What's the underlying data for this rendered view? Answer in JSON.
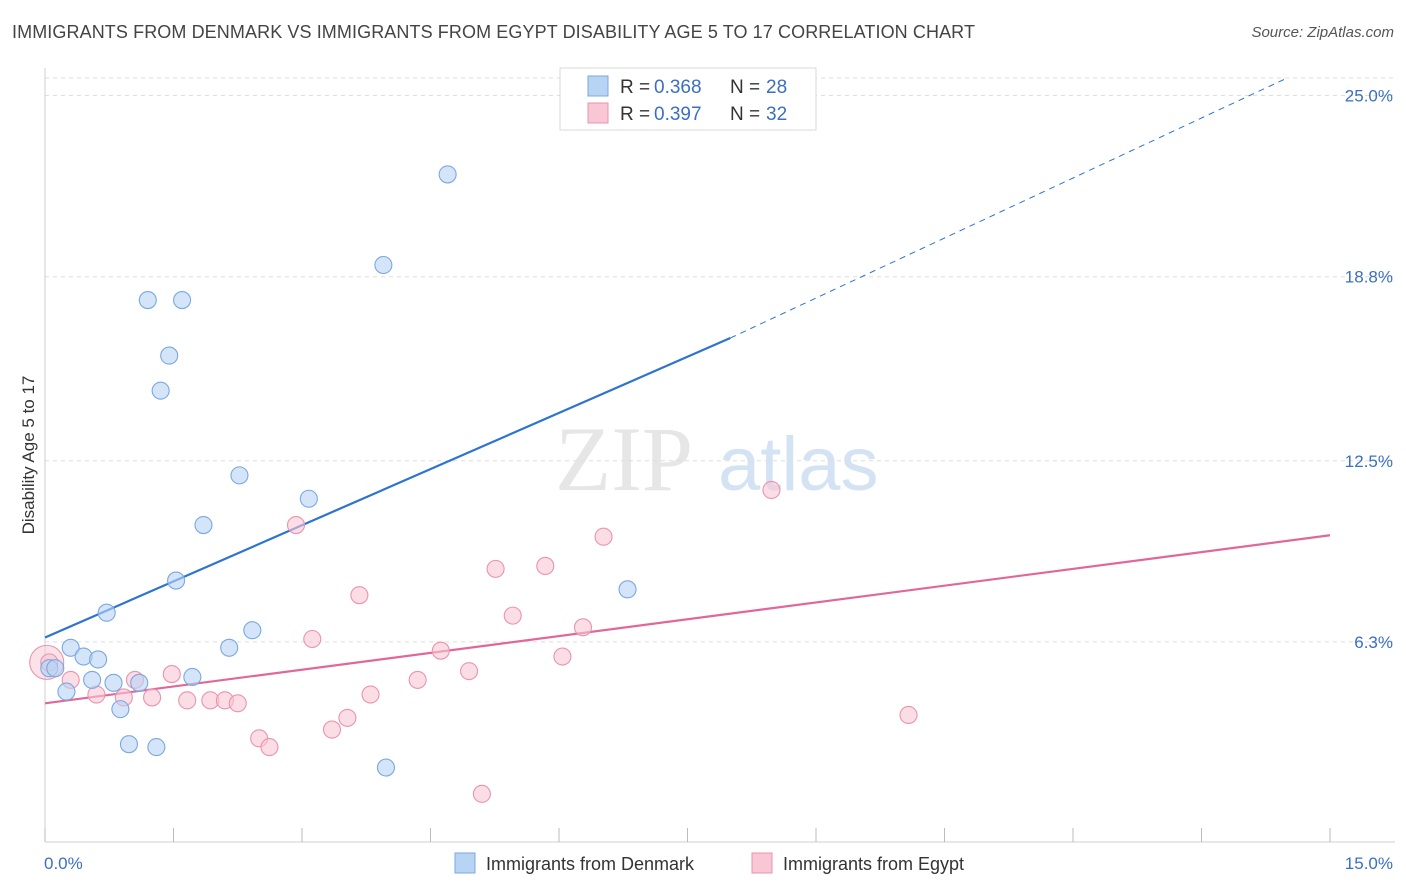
{
  "title": "IMMIGRANTS FROM DENMARK VS IMMIGRANTS FROM EGYPT DISABILITY AGE 5 TO 17 CORRELATION CHART",
  "source": "Source: ZipAtlas.com",
  "watermark": {
    "zip": "ZIP",
    "atlas": "atlas"
  },
  "colors": {
    "denmark_fill": "#b8d4f5",
    "denmark_stroke": "#7aa8e0",
    "denmark_line": "#2c74cf",
    "egypt_fill": "#f8c6d4",
    "egypt_stroke": "#eb93ad",
    "egypt_line": "#e0679a",
    "tick_text": "#3a6fc4",
    "grid": "#dedede"
  },
  "legend": [
    {
      "r_label": "R =",
      "r_value": "0.368",
      "n_label": "N =",
      "n_value": "28"
    },
    {
      "r_label": "R =",
      "r_value": "0.397",
      "n_label": "N =",
      "n_value": "32"
    }
  ],
  "chart_data": {
    "type": "scatter",
    "title": "IMMIGRANTS FROM DENMARK VS IMMIGRANTS FROM EGYPT DISABILITY AGE 5 TO 17 CORRELATION CHART",
    "xlabel": "",
    "ylabel": "Disability Age 5 to 17",
    "xlim": [
      0,
      15
    ],
    "ylim": [
      0,
      25.6
    ],
    "x_tick_labels": [
      "0.0%",
      "15.0%"
    ],
    "y_ticks": [
      6.3,
      12.5,
      18.8,
      25.0
    ],
    "y_tick_labels": [
      "6.3%",
      "12.5%",
      "18.8%",
      "25.0%"
    ],
    "legend_position": "top-center",
    "series": [
      {
        "name": "Immigrants from Denmark",
        "points": [
          [
            0.05,
            5.4
          ],
          [
            0.12,
            5.4
          ],
          [
            0.25,
            4.6
          ],
          [
            0.3,
            6.1
          ],
          [
            0.45,
            5.8
          ],
          [
            0.55,
            5.0
          ],
          [
            0.62,
            5.7
          ],
          [
            0.72,
            7.3
          ],
          [
            0.8,
            4.9
          ],
          [
            0.88,
            4.0
          ],
          [
            0.98,
            2.8
          ],
          [
            1.1,
            4.9
          ],
          [
            1.2,
            18.0
          ],
          [
            1.3,
            2.7
          ],
          [
            1.35,
            14.9
          ],
          [
            1.45,
            16.1
          ],
          [
            1.53,
            8.4
          ],
          [
            1.6,
            18.0
          ],
          [
            1.72,
            5.1
          ],
          [
            1.85,
            10.3
          ],
          [
            2.15,
            6.1
          ],
          [
            2.27,
            12.0
          ],
          [
            2.42,
            6.7
          ],
          [
            3.08,
            11.2
          ],
          [
            3.95,
            19.2
          ],
          [
            3.98,
            2.0
          ],
          [
            4.7,
            22.3
          ],
          [
            6.8,
            8.1
          ]
        ],
        "trend": {
          "x": [
            0,
            8.0
          ],
          "y": [
            6.45,
            16.7
          ],
          "dashed_to": [
            14.5,
            25.6
          ]
        }
      },
      {
        "name": "Immigrants from Egypt",
        "points": [
          [
            0.02,
            5.6
          ],
          [
            0.3,
            5.0
          ],
          [
            0.6,
            4.5
          ],
          [
            0.92,
            4.4
          ],
          [
            1.05,
            5.0
          ],
          [
            1.25,
            4.4
          ],
          [
            1.48,
            5.2
          ],
          [
            1.66,
            4.3
          ],
          [
            1.93,
            4.3
          ],
          [
            2.1,
            4.3
          ],
          [
            2.25,
            4.2
          ],
          [
            2.5,
            3.0
          ],
          [
            2.62,
            2.7
          ],
          [
            2.93,
            10.3
          ],
          [
            3.12,
            6.4
          ],
          [
            3.35,
            3.3
          ],
          [
            3.53,
            3.7
          ],
          [
            3.67,
            7.9
          ],
          [
            3.8,
            4.5
          ],
          [
            4.35,
            5.0
          ],
          [
            4.62,
            6.0
          ],
          [
            4.95,
            5.3
          ],
          [
            5.1,
            1.1
          ],
          [
            5.26,
            8.8
          ],
          [
            5.46,
            7.2
          ],
          [
            5.84,
            8.9
          ],
          [
            6.04,
            5.8
          ],
          [
            6.28,
            6.8
          ],
          [
            6.52,
            9.9
          ],
          [
            8.48,
            11.5
          ],
          [
            10.08,
            3.8
          ],
          [
            0.05,
            5.6
          ]
        ],
        "trend": {
          "x": [
            0,
            15
          ],
          "y": [
            4.2,
            9.95
          ]
        }
      }
    ]
  },
  "bottom_legend": [
    "Immigrants from Denmark",
    "Immigrants from Egypt"
  ]
}
